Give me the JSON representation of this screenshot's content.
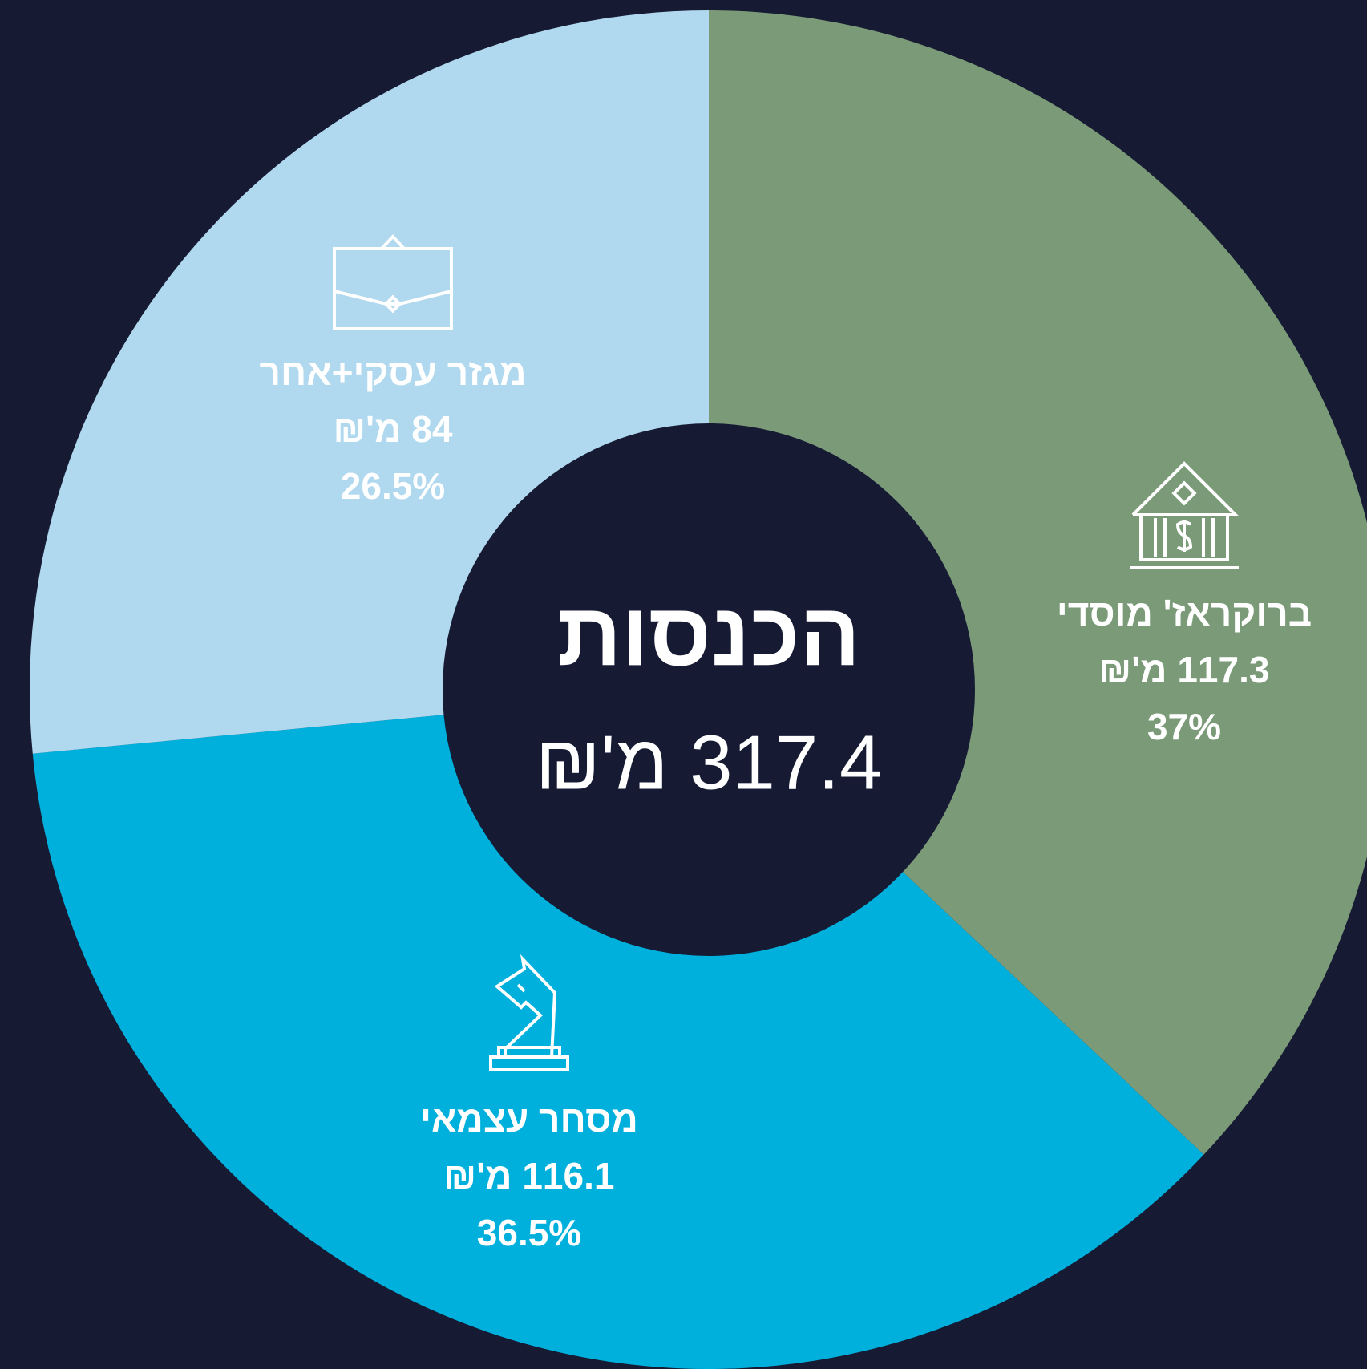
{
  "chart_data": {
    "type": "donut",
    "center_title": "הכנסות",
    "center_label": "317.4 מ'₪",
    "categories": [
      "ברוקראז' מוסדי",
      "מסחר עצמאי",
      "מגזר עסקי+אחר"
    ],
    "values": [
      37,
      36.5,
      26.5
    ],
    "value_labels": [
      "37%",
      "36.5%",
      "26.5%"
    ],
    "amount_labels": [
      "117.3 מ'₪",
      "116.1 מ'₪",
      "84 מ'₪"
    ],
    "colors": [
      "#7a9a78",
      "#00b0dc",
      "#b0d8ee"
    ]
  }
}
